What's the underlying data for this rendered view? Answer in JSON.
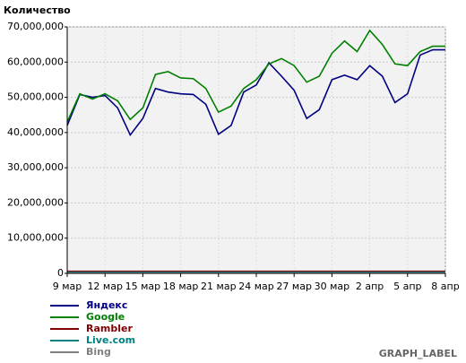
{
  "chart_data": {
    "type": "line",
    "y_label": "Количество",
    "graph_label": "GRAPH_LABEL",
    "categories": [
      "9 мар",
      null,
      null,
      "12 мар",
      null,
      null,
      "15 мар",
      null,
      null,
      "18 мар",
      null,
      null,
      "21 мар",
      null,
      null,
      "24 мар",
      null,
      null,
      "27 мар",
      null,
      null,
      "30 мар",
      null,
      null,
      "2 апр",
      null,
      null,
      "5 апр",
      null,
      null,
      "8 апр"
    ],
    "ylim": [
      0,
      70000000
    ],
    "yticks": [
      {
        "value": 0,
        "label": "0"
      },
      {
        "value": 10000000,
        "label": "10,000,000"
      },
      {
        "value": 20000000,
        "label": "20,000,000"
      },
      {
        "value": 30000000,
        "label": "30,000,000"
      },
      {
        "value": 40000000,
        "label": "40,000,000"
      },
      {
        "value": 50000000,
        "label": "50,000,000"
      },
      {
        "value": 60000000,
        "label": "60,000,000"
      },
      {
        "value": 70000000,
        "label": "70,000,000"
      }
    ],
    "grid": true,
    "series": [
      {
        "name": "Яндекс",
        "color": "#000080",
        "values": [
          42000000,
          50800000,
          50000000,
          50500000,
          47000000,
          39300000,
          44000000,
          52500000,
          51500000,
          51000000,
          50800000,
          48000000,
          39500000,
          42000000,
          51500000,
          53500000,
          59800000,
          56000000,
          52000000,
          44000000,
          46500000,
          55000000,
          56300000,
          55000000,
          59000000,
          56000000,
          48500000,
          51000000,
          62000000,
          63500000,
          63500000
        ]
      },
      {
        "name": "Google",
        "color": "#008000",
        "values": [
          43000000,
          51000000,
          49500000,
          51000000,
          49000000,
          43700000,
          47000000,
          56500000,
          57300000,
          55500000,
          55300000,
          52500000,
          45800000,
          47500000,
          52500000,
          55000000,
          59500000,
          61000000,
          59000000,
          54300000,
          56000000,
          62500000,
          66000000,
          63000000,
          69000000,
          65000000,
          59500000,
          59000000,
          63000000,
          64500000,
          64500000
        ]
      },
      {
        "name": "Rambler",
        "color": "#800000",
        "values": [
          600000,
          600000,
          600000,
          600000,
          600000,
          600000,
          600000,
          600000,
          600000,
          600000,
          600000,
          600000,
          600000,
          600000,
          600000,
          600000,
          600000,
          600000,
          600000,
          600000,
          600000,
          600000,
          600000,
          600000,
          600000,
          600000,
          600000,
          600000,
          600000,
          600000,
          600000
        ]
      },
      {
        "name": "Live.com",
        "color": "#008080",
        "values": [
          300000,
          300000,
          300000,
          300000,
          300000,
          300000,
          300000,
          300000,
          300000,
          300000,
          300000,
          300000,
          300000,
          300000,
          300000,
          300000,
          300000,
          300000,
          300000,
          300000,
          300000,
          300000,
          300000,
          300000,
          300000,
          300000,
          300000,
          300000,
          300000,
          300000,
          300000
        ]
      },
      {
        "name": "Bing",
        "color": "#808080",
        "values": [
          100000,
          100000,
          100000,
          100000,
          100000,
          100000,
          100000,
          100000,
          100000,
          100000,
          100000,
          100000,
          100000,
          100000,
          100000,
          100000,
          100000,
          100000,
          100000,
          100000,
          100000,
          100000,
          100000,
          100000,
          100000,
          100000,
          100000,
          100000,
          100000,
          100000,
          100000
        ]
      }
    ]
  }
}
